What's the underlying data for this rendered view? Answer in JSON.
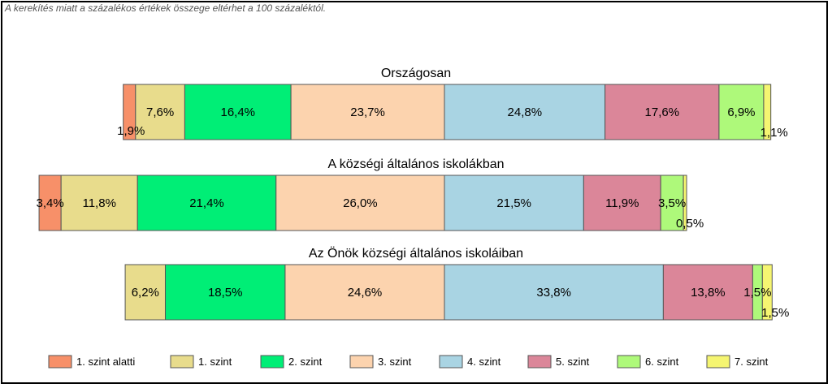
{
  "note": "A kerekítés miatt a  százalékos értékek összege eltérhet a 100 százaléktól.",
  "chart_data": {
    "type": "bar",
    "orientation": "horizontal",
    "stacked": true,
    "legend_position": "bottom",
    "series": [
      {
        "name": "1. szint alatti",
        "color": "#F79069"
      },
      {
        "name": "1. szint",
        "color": "#E8DC8C"
      },
      {
        "name": "2. szint",
        "color": "#00EE76"
      },
      {
        "name": "3. szint",
        "color": "#FCD3AE"
      },
      {
        "name": "4. szint",
        "color": "#A9D4E3"
      },
      {
        "name": "5. szint",
        "color": "#DB8699"
      },
      {
        "name": "6. szint",
        "color": "#AEF97A"
      },
      {
        "name": "7. szint",
        "color": "#F5F571"
      }
    ],
    "bars": [
      {
        "title": "Országosan",
        "values": [
          1.9,
          7.6,
          16.4,
          23.7,
          24.8,
          17.6,
          6.9,
          1.1
        ],
        "labels": [
          "1,9%",
          "7,6%",
          "16,4%",
          "23,7%",
          "24,8%",
          "17,6%",
          "6,9%",
          "1,1%"
        ]
      },
      {
        "title": "A községi általános iskolákban",
        "values": [
          3.4,
          11.8,
          21.4,
          26.0,
          21.5,
          11.9,
          3.5,
          0.5
        ],
        "labels": [
          "3,4%",
          "11,8%",
          "21,4%",
          "26,0%",
          "21,5%",
          "11,9%",
          "3,5%",
          "0,5%"
        ]
      },
      {
        "title": "Az Önök községi általános iskoláiban",
        "values": [
          0,
          6.2,
          18.5,
          24.6,
          33.8,
          13.8,
          1.5,
          1.5
        ],
        "labels": [
          "",
          "6,2%",
          "18,5%",
          "24,6%",
          "33,8%",
          "13,8%",
          "1,5%",
          "1,5%"
        ]
      }
    ]
  }
}
